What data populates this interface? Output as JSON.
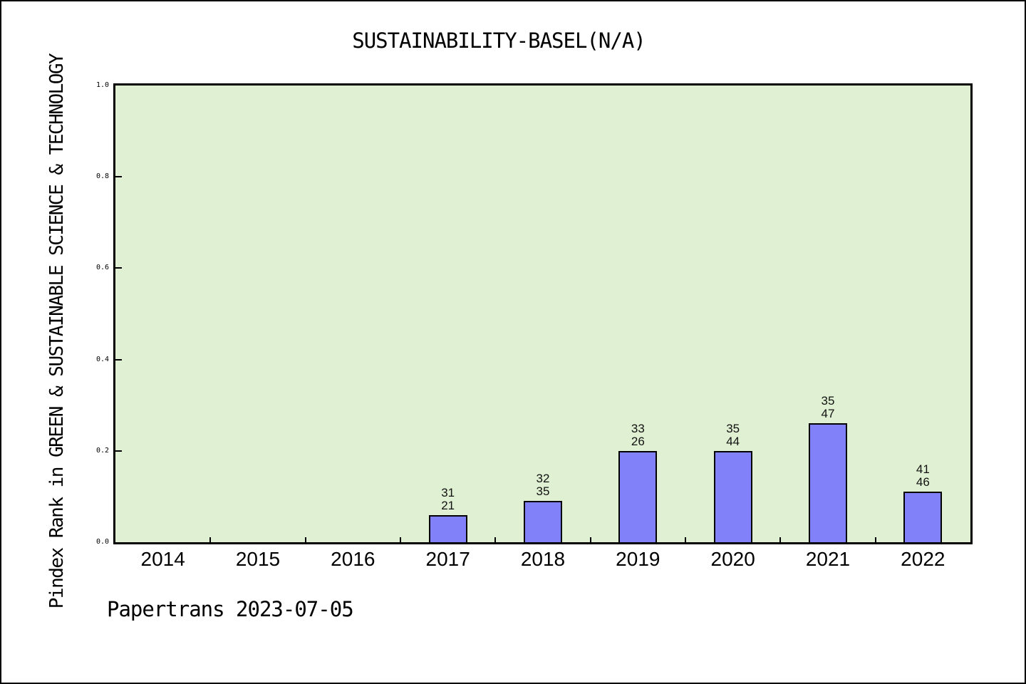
{
  "colors": {
    "bar": "#8181fa",
    "bar_edge": "#000000",
    "plot_bg": "#e0f0d2",
    "frame": "#000000"
  },
  "chart_data": {
    "type": "bar",
    "title": "SUSTAINABILITY-BASEL(N/A)",
    "ylabel": "Pindex Rank in GREEN & SUSTAINABLE SCIENCE & TECHNOLOGY",
    "xlabel": "",
    "annotation": "Papertrans 2023-07-05",
    "categories": [
      "2014",
      "2015",
      "2016",
      "2017",
      "2018",
      "2019",
      "2020",
      "2021",
      "2022"
    ],
    "values": [
      null,
      null,
      null,
      0.06,
      0.09,
      0.2,
      0.2,
      0.26,
      0.11
    ],
    "bar_labels": [
      null,
      null,
      null,
      [
        "31",
        "21"
      ],
      [
        "32",
        "35"
      ],
      [
        "33",
        "26"
      ],
      [
        "35",
        "44"
      ],
      [
        "35",
        "47"
      ],
      [
        "41",
        "46"
      ]
    ],
    "ylim": [
      0,
      1
    ],
    "yticks": [
      "0.0",
      "0.2",
      "0.4",
      "0.6",
      "0.8",
      "1.0"
    ],
    "grid": false,
    "legend": null
  }
}
